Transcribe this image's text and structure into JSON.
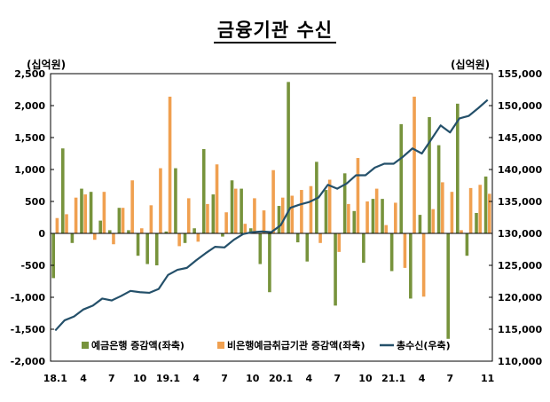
{
  "header": {
    "title": "금융기관 수신",
    "unit_left": "(십억원)",
    "unit_right": "(십억원)"
  },
  "chart_data": {
    "type": "bar",
    "left_axis": {
      "ylim": [
        -2000,
        2500
      ],
      "ticks": [
        "2,500",
        "2,000",
        "1,500",
        "1,000",
        "500",
        "0",
        "-500",
        "-1,000",
        "-1,500",
        "-2,000"
      ],
      "tick_values": [
        2500,
        2000,
        1500,
        1000,
        500,
        0,
        -500,
        -1000,
        -1500,
        -2000
      ]
    },
    "right_axis": {
      "ylim": [
        110000,
        155000
      ],
      "ticks": [
        "155,000",
        "150,000",
        "145,000",
        "140,000",
        "135,000",
        "130,000",
        "125,000",
        "120,000",
        "115,000",
        "110,000"
      ],
      "tick_values": [
        155000,
        150000,
        145000,
        140000,
        135000,
        130000,
        125000,
        120000,
        115000,
        110000
      ]
    },
    "x_tick_labels": [
      {
        "index": 0,
        "label": "18.1"
      },
      {
        "index": 3,
        "label": "4"
      },
      {
        "index": 6,
        "label": "7"
      },
      {
        "index": 9,
        "label": "10"
      },
      {
        "index": 12,
        "label": "19.1"
      },
      {
        "index": 15,
        "label": "4"
      },
      {
        "index": 18,
        "label": "7"
      },
      {
        "index": 21,
        "label": "10"
      },
      {
        "index": 24,
        "label": "20.1"
      },
      {
        "index": 27,
        "label": "4"
      },
      {
        "index": 30,
        "label": "7"
      },
      {
        "index": 33,
        "label": "10"
      },
      {
        "index": 36,
        "label": "21.1"
      },
      {
        "index": 39,
        "label": "4"
      },
      {
        "index": 42,
        "label": "7"
      },
      {
        "index": 46,
        "label": "11"
      }
    ],
    "months": 47,
    "series": [
      {
        "name": "예금은행 증감액(좌축)",
        "kind": "bar",
        "axis": "left",
        "color": "#77933c",
        "values": [
          -700,
          1330,
          -150,
          700,
          650,
          200,
          50,
          400,
          50,
          -350,
          -480,
          -500,
          30,
          1020,
          -150,
          80,
          1320,
          610,
          -50,
          830,
          700,
          80,
          -480,
          -920,
          430,
          2370,
          -140,
          -440,
          1120,
          680,
          -1130,
          940,
          350,
          -460,
          540,
          540,
          -590,
          1710,
          -1020,
          290,
          1820,
          1380,
          -1650,
          2030,
          -350,
          320,
          890
        ]
      },
      {
        "name": "비은행예금취급기관 증감액(좌축)",
        "kind": "bar",
        "axis": "left",
        "color": "#f0a050",
        "values": [
          240,
          300,
          560,
          610,
          -100,
          650,
          -170,
          400,
          830,
          80,
          440,
          1020,
          2140,
          -200,
          550,
          -130,
          460,
          1080,
          330,
          700,
          150,
          550,
          360,
          990,
          560,
          590,
          680,
          740,
          -150,
          840,
          -290,
          460,
          1180,
          500,
          700,
          130,
          480,
          -540,
          2140,
          -990,
          380,
          800,
          650,
          50,
          710,
          760,
          620
        ]
      },
      {
        "name": "총수신(우축)",
        "kind": "line",
        "axis": "right",
        "color": "#24506a",
        "values": [
          114800,
          116400,
          117000,
          118100,
          118700,
          119800,
          119500,
          120200,
          121000,
          120800,
          120700,
          121300,
          123500,
          124300,
          124600,
          125800,
          126900,
          127900,
          127800,
          129000,
          129900,
          130200,
          130300,
          130200,
          131300,
          134000,
          134500,
          134900,
          135600,
          137600,
          137000,
          137800,
          139100,
          139100,
          140300,
          140900,
          140900,
          142000,
          143300,
          142500,
          144700,
          146900,
          145800,
          148000,
          148400,
          149600,
          150900
        ]
      }
    ],
    "legend_position": "bottom",
    "grid": false
  }
}
